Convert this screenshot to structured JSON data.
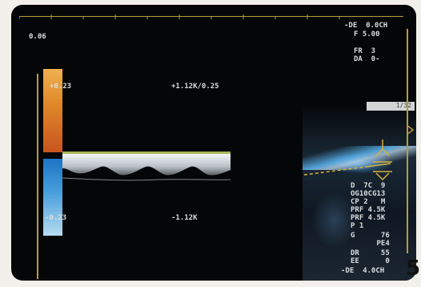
{
  "scale": {
    "top_value": "0.06",
    "pos_velocity": "+0.23",
    "neg_velocity": "-0.23"
  },
  "readouts": {
    "pos_frequency": "+1.12K/0.25",
    "neg_frequency": "-1.12K"
  },
  "sidebar": {
    "lines": [
      "-DE  0.0CH",
      "F 5.00",
      "FR  3",
      "DA  0-"
    ],
    "lower_lines": [
      "D  7C  9",
      "OG10CG13",
      "CP 2   M",
      "PRF 4.5K",
      "PRF 4.5K",
      "P 1",
      "G      76",
      "      PE4",
      "DR     55",
      "EE      0",
      "-DE  4.0CH"
    ],
    "label_box": "1/32"
  },
  "figure_number": "5",
  "colors": {
    "screen": "#050607",
    "trace": "#c9a24a",
    "positive_scale": "#e08a2a",
    "negative_scale": "#4aa0dc"
  }
}
